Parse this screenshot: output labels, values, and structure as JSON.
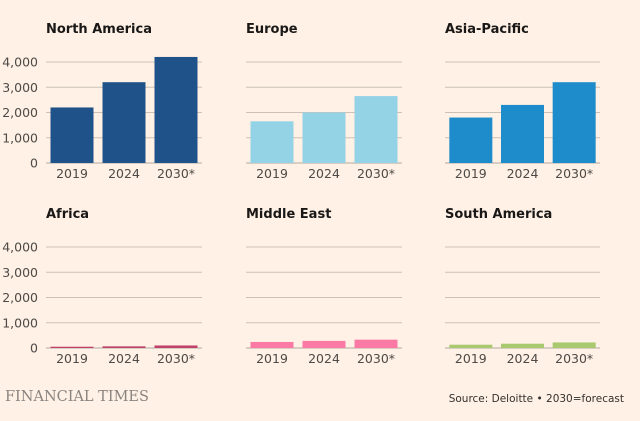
{
  "chart_data": [
    {
      "type": "bar",
      "title": "North America",
      "categories": [
        "2019",
        "2024",
        "2030*"
      ],
      "values": [
        2200,
        3200,
        4200
      ],
      "color": "#1f5289",
      "ylim": [
        0,
        4000
      ],
      "yticks": [
        "0",
        "1,000",
        "2,000",
        "3,000",
        "4,000"
      ],
      "show_yticks": true,
      "grid": true
    },
    {
      "type": "bar",
      "title": "Europe",
      "categories": [
        "2019",
        "2024",
        "2030*"
      ],
      "values": [
        1650,
        2000,
        2650
      ],
      "color": "#94d2e6",
      "ylim": [
        0,
        4000
      ],
      "yticks": [
        "0",
        "1,000",
        "2,000",
        "3,000",
        "4,000"
      ],
      "show_yticks": false,
      "grid": true
    },
    {
      "type": "bar",
      "title": "Asia-Pacific",
      "categories": [
        "2019",
        "2024",
        "2030*"
      ],
      "values": [
        1800,
        2300,
        3200
      ],
      "color": "#1e8bca",
      "ylim": [
        0,
        4000
      ],
      "yticks": [
        "0",
        "1,000",
        "2,000",
        "3,000",
        "4,000"
      ],
      "show_yticks": false,
      "grid": true
    },
    {
      "type": "bar",
      "title": "Africa",
      "categories": [
        "2019",
        "2024",
        "2030*"
      ],
      "values": [
        50,
        65,
        100
      ],
      "color": "#c0416a",
      "ylim": [
        0,
        4000
      ],
      "yticks": [
        "0",
        "1,000",
        "2,000",
        "3,000",
        "4,000"
      ],
      "show_yticks": true,
      "grid": true
    },
    {
      "type": "bar",
      "title": "Middle East",
      "categories": [
        "2019",
        "2024",
        "2030*"
      ],
      "values": [
        240,
        280,
        330
      ],
      "color": "#fb7aa5",
      "ylim": [
        0,
        4000
      ],
      "yticks": [
        "0",
        "1,000",
        "2,000",
        "3,000",
        "4,000"
      ],
      "show_yticks": false,
      "grid": true
    },
    {
      "type": "bar",
      "title": "South America",
      "categories": [
        "2019",
        "2024",
        "2030*"
      ],
      "values": [
        130,
        170,
        220
      ],
      "color": "#a8c96e",
      "ylim": [
        0,
        4000
      ],
      "yticks": [
        "0",
        "1,000",
        "2,000",
        "3,000",
        "4,000"
      ],
      "show_yticks": false,
      "grid": true
    }
  ],
  "footer": {
    "brand": "FINANCIAL TIMES",
    "source": "Source: Deloitte • 2030=forecast"
  },
  "colors": {
    "background": "#fff1e5",
    "gridline": "#ccc1b7",
    "axis_text": "#4d4a47"
  }
}
